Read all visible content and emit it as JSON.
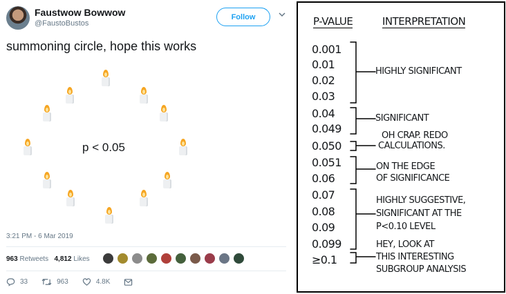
{
  "tweet": {
    "display_name": "Faustwow Bowwow",
    "handle": "@FaustoBustos",
    "follow_label": "Follow",
    "text": "summoning circle, hope this works",
    "center_text": "p < 0.05",
    "timestamp": "3:21 PM - 6 Mar 2019",
    "retweets_count": "963",
    "retweets_label": "Retweets",
    "likes_count": "4,812",
    "likes_label": "Likes",
    "replies": "33",
    "retweets_action": "963",
    "likes_action": "4.8K",
    "accent": "#1da1f2",
    "icons": [
      "reply-icon",
      "retweet-icon",
      "like-icon",
      "dm-icon",
      "chevron-down-icon"
    ]
  },
  "comic": {
    "header_pvalue": "P-VALUE",
    "header_interp": "INTERPRETATION",
    "p_values": [
      "0.001",
      "0.01",
      "0.02",
      "0.03",
      "0.04",
      "0.049",
      "0.050",
      "0.051",
      "0.06",
      "0.07",
      "0.08",
      "0.09",
      "0.099",
      "≥0.1"
    ],
    "interpretations": {
      "highly_significant": "HIGHLY SIGNIFICANT",
      "significant": "SIGNIFICANT",
      "oh_crap_1": "OH CRAP. REDO",
      "oh_crap_2": "CALCULATIONS.",
      "edge_1": "ON THE EDGE",
      "edge_2": "OF SIGNIFICANCE",
      "suggestive_1": "HIGHLY SUGGESTIVE,",
      "suggestive_2": "SIGNIFICANT AT THE",
      "suggestive_3": "P<0.10 LEVEL",
      "subgroup_1": "HEY, LOOK AT",
      "subgroup_2": "THIS INTERESTING",
      "subgroup_3": "SUBGROUP ANALYSIS"
    }
  }
}
